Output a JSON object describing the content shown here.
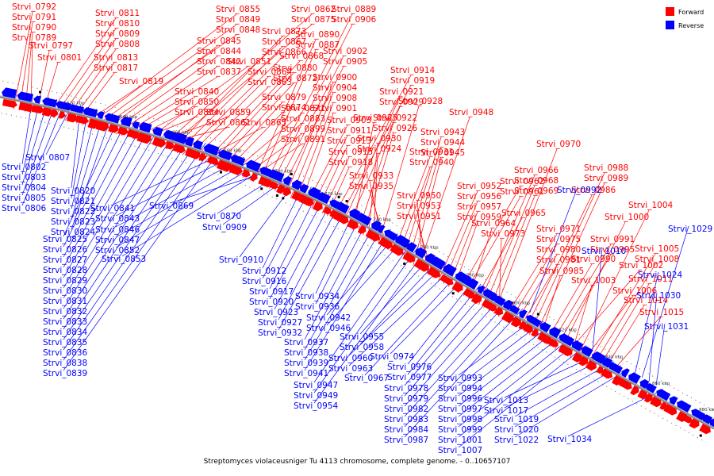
{
  "caption": "Streptomyces violaceusniger Tu 4113 chromosome, complete genome. - 0..10657107",
  "legend": [
    {
      "label": "Forward",
      "color": "#ff0000"
    },
    {
      "label": "Reverse",
      "color": "#0000ff"
    }
  ],
  "colors": {
    "forward": "#ff0000",
    "reverse": "#0000ff",
    "axis": "#888888"
  },
  "axis_ticks": [
    "620 kbp",
    "640 kbp",
    "660 kbp",
    "680 kbp",
    "700 kbp",
    "720 kbp",
    "740 kbp",
    "760 kbp",
    "780 kbp",
    "800 kbp",
    "820 kbp",
    "840 kbp",
    "860 kbp",
    "880 kbp"
  ],
  "forward_genes": [
    "Strvi_0792",
    "Strvi_0791",
    "Strvi_0790",
    "Strvi_0789",
    "Strvi_0797",
    "Strvi_0801",
    "Strvi_0811",
    "Strvi_0810",
    "Strvi_0809",
    "Strvi_0808",
    "Strvi_0813",
    "Strvi_0817",
    "Strvi_0819",
    "Strvi_0855",
    "Strvi_0849",
    "Strvi_0848",
    "Strvi_0845",
    "Strvi_0844",
    "Strvi_0842",
    "Strvi_0837",
    "Strvi_0840",
    "Strvi_0850",
    "Strvi_0854",
    "Strvi_0851",
    "Strvi_0859",
    "Strvi_0861",
    "Strvi_0862",
    "Strvi_0875",
    "Strvi_0873",
    "Strvi_0867",
    "Strvi_0866",
    "Strvi_0864",
    "Strvi_0863",
    "Strvi_0865",
    "Strvi_0868",
    "Strvi_0880",
    "Strvi_0872",
    "Strvi_0879",
    "Strvi_0874",
    "Strvi_0871",
    "Strvi_0883",
    "Strvi_0899",
    "Strvi_0891",
    "Strvi_0890",
    "Strvi_0887",
    "Strvi_0889",
    "Strvi_0906",
    "Strvi_0902",
    "Strvi_0905",
    "Strvi_0900",
    "Strvi_0904",
    "Strvi_0908",
    "Strvi_0901",
    "Strvi_0903",
    "Strvi_0911",
    "Strvi_0913",
    "Strvi_0915",
    "Strvi_0918",
    "Strvi_0914",
    "Strvi_0919",
    "Strvi_0921",
    "Strvi_0929",
    "Strvi_0925",
    "Strvi_0922",
    "Strvi_0926",
    "Strvi_0930",
    "Strvi_0924",
    "Strvi_0928",
    "Strvi_0933",
    "Strvi_0935",
    "Strvi_0931",
    "Strvi_0940",
    "Strvi_0943",
    "Strvi_0944",
    "Strvi_0945",
    "Strvi_0948",
    "Strvi_0950",
    "Strvi_0953",
    "Strvi_0951",
    "Strvi_0952",
    "Strvi_0956",
    "Strvi_0957",
    "Strvi_0959",
    "Strvi_0962",
    "Strvi_0961",
    "Strvi_0964",
    "Strvi_0965",
    "Strvi_0966",
    "Strvi_0968",
    "Strvi_0969",
    "Strvi_0970",
    "Strvi_0973",
    "Strvi_0971",
    "Strvi_0975",
    "Strvi_0980",
    "Strvi_0981",
    "Strvi_0986",
    "Strvi_0988",
    "Strvi_0989",
    "Strvi_0985",
    "Strvi_0990",
    "Strvi_0991",
    "Strvi_0995",
    "Strvi_1000",
    "Strvi_1002",
    "Strvi_1003",
    "Strvi_1004",
    "Strvi_1006",
    "Strvi_1005",
    "Strvi_1008",
    "Strvi_1011",
    "Strvi_1014",
    "Strvi_1015",
    "Strvi_1016",
    "Strvi_1018",
    "Strvi_1021",
    "Strvi_1026"
  ],
  "reverse_genes": [
    "Strvi_0802",
    "Strvi_0803",
    "Strvi_0804",
    "Strvi_0805",
    "Strvi_0806",
    "Strvi_0807",
    "Strvi_0820",
    "Strvi_0821",
    "Strvi_0822",
    "Strvi_0823",
    "Strvi_0824",
    "Strvi_0825",
    "Strvi_0826",
    "Strvi_0827",
    "Strvi_0828",
    "Strvi_0829",
    "Strvi_0830",
    "Strvi_0831",
    "Strvi_0832",
    "Strvi_0833",
    "Strvi_0834",
    "Strvi_0835",
    "Strvi_0836",
    "Strvi_0838",
    "Strvi_0839",
    "Strvi_0841",
    "Strvi_0843",
    "Strvi_0846",
    "Strvi_0847",
    "Strvi_0852",
    "Strvi_0853",
    "Strvi_0869",
    "Strvi_0870",
    "Strvi_0909",
    "Strvi_0910",
    "Strvi_0912",
    "Strvi_0916",
    "Strvi_0917",
    "Strvi_0920",
    "Strvi_0923",
    "Strvi_0927",
    "Strvi_0932",
    "Strvi_0934",
    "Strvi_0936",
    "Strvi_0937",
    "Strvi_0938",
    "Strvi_0939",
    "Strvi_0941",
    "Strvi_0942",
    "Strvi_0946",
    "Strvi_0947",
    "Strvi_0949",
    "Strvi_0954",
    "Strvi_0955",
    "Strvi_0958",
    "Strvi_0960",
    "Strvi_0963",
    "Strvi_0967",
    "Strvi_0974",
    "Strvi_0976",
    "Strvi_0977",
    "Strvi_0978",
    "Strvi_0979",
    "Strvi_0982",
    "Strvi_0983",
    "Strvi_0984",
    "Strvi_0987",
    "Strvi_0992",
    "Strvi_0993",
    "Strvi_0994",
    "Strvi_0996",
    "Strvi_0997",
    "Strvi_0998",
    "Strvi_0999",
    "Strvi_1001",
    "Strvi_1007",
    "Strvi_1010",
    "Strvi_1013",
    "Strvi_1017",
    "Strvi_1019",
    "Strvi_1020",
    "Strvi_1022",
    "Strvi_1024",
    "Strvi_1029",
    "Strvi_1030",
    "Strvi_1031",
    "Strvi_1034"
  ]
}
